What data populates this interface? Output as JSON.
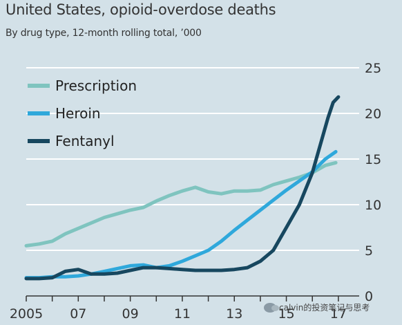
{
  "title": "United States, opioid-overdose deaths",
  "subtitle": "By drug type, 12-month rolling total, ’000",
  "watermark": {
    "text": "calvin的投资笔记与思考",
    "icon": "wechat-icon"
  },
  "colors": {
    "background": "#d3e1e8",
    "grid": "#ffffff",
    "axis": "#333333",
    "prescription": "#7fc4bf",
    "heroin": "#2fa8db",
    "fentanyl": "#17475f"
  },
  "chart_data": {
    "type": "line",
    "title": "United States, opioid-overdose deaths",
    "subtitle": "By drug type, 12-month rolling total, ’000",
    "xlim": [
      2005,
      2017.8
    ],
    "ylim": [
      0,
      25
    ],
    "y_axis_side": "right",
    "y_ticks": [
      0,
      5,
      10,
      15,
      20,
      25
    ],
    "x_ticks": [
      2005,
      2007,
      2009,
      2011,
      2013,
      2015,
      2017
    ],
    "x_tick_labels": [
      "2005",
      "07",
      "09",
      "11",
      "13",
      "15",
      "17"
    ],
    "grid": true,
    "legend_position": "top-left",
    "series": [
      {
        "name": "Prescription",
        "color": "#7fc4bf",
        "x": [
          2005.0,
          2005.5,
          2006.0,
          2006.5,
          2007.0,
          2007.5,
          2008.0,
          2008.5,
          2009.0,
          2009.5,
          2010.0,
          2010.5,
          2011.0,
          2011.5,
          2012.0,
          2012.5,
          2013.0,
          2013.5,
          2014.0,
          2014.5,
          2015.0,
          2015.5,
          2016.0,
          2016.5,
          2016.9
        ],
        "y": [
          5.5,
          5.7,
          6.0,
          6.8,
          7.4,
          8.0,
          8.6,
          9.0,
          9.4,
          9.7,
          10.4,
          11.0,
          11.5,
          11.9,
          11.4,
          11.2,
          11.5,
          11.5,
          11.6,
          12.2,
          12.6,
          13.0,
          13.5,
          14.3,
          14.6
        ]
      },
      {
        "name": "Heroin",
        "color": "#2fa8db",
        "x": [
          2005.0,
          2005.5,
          2006.0,
          2006.5,
          2007.0,
          2007.5,
          2008.0,
          2008.5,
          2009.0,
          2009.5,
          2010.0,
          2010.5,
          2011.0,
          2011.5,
          2012.0,
          2012.5,
          2013.0,
          2013.5,
          2014.0,
          2014.5,
          2015.0,
          2015.5,
          2016.0,
          2016.5,
          2016.9
        ],
        "y": [
          2.0,
          2.0,
          2.1,
          2.1,
          2.2,
          2.4,
          2.7,
          3.0,
          3.3,
          3.4,
          3.1,
          3.3,
          3.8,
          4.4,
          5.0,
          6.0,
          7.2,
          8.3,
          9.4,
          10.5,
          11.6,
          12.6,
          13.6,
          15.0,
          15.8
        ]
      },
      {
        "name": "Fentanyl",
        "color": "#17475f",
        "x": [
          2005.0,
          2005.5,
          2006.0,
          2006.5,
          2007.0,
          2007.5,
          2008.0,
          2008.5,
          2009.0,
          2009.5,
          2010.0,
          2010.5,
          2011.0,
          2011.5,
          2012.0,
          2012.5,
          2013.0,
          2013.5,
          2014.0,
          2014.5,
          2015.0,
          2015.5,
          2016.0,
          2016.3,
          2016.6,
          2016.8,
          2017.0
        ],
        "y": [
          1.9,
          1.9,
          2.0,
          2.7,
          2.9,
          2.4,
          2.4,
          2.5,
          2.8,
          3.1,
          3.1,
          3.0,
          2.9,
          2.8,
          2.8,
          2.8,
          2.9,
          3.1,
          3.8,
          5.0,
          7.5,
          10.0,
          13.5,
          16.5,
          19.5,
          21.2,
          21.8
        ]
      }
    ]
  }
}
